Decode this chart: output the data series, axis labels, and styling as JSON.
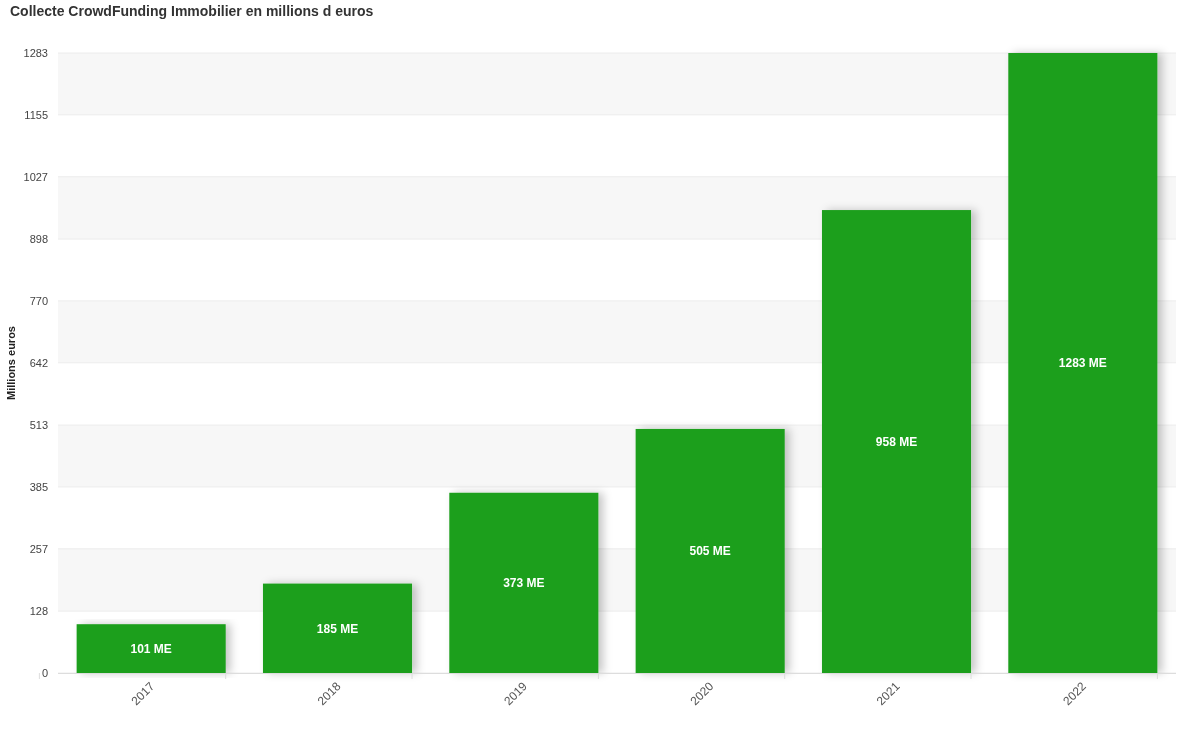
{
  "chart_data": {
    "type": "bar",
    "title": "Collecte CrowdFunding Immobilier en millions d euros",
    "ylabel": "Millions euros",
    "categories": [
      "2017",
      "2018",
      "2019",
      "2020",
      "2021",
      "2022"
    ],
    "values": [
      101,
      185,
      373,
      505,
      958,
      1283
    ],
    "color": "#1f9f1f",
    "value_labels": [
      "101 ME",
      "185 ME",
      "373 ME",
      "505 ME",
      "958 ME",
      "1283 ME"
    ],
    "ylim": [
      0,
      1283
    ],
    "yticks": [
      0,
      128,
      257,
      385,
      513,
      642,
      770,
      898,
      1027,
      1155,
      1283
    ],
    "grid": "y"
  }
}
